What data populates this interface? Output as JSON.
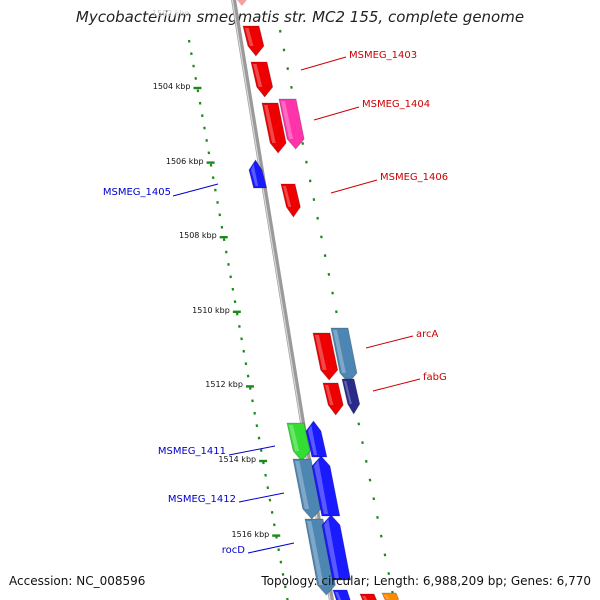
{
  "title": "Mycobacterium smegmatis str. MC2 155, complete genome",
  "footer": {
    "accession": "Accession: NC_008596",
    "summary": "Topology: circular; Length: 6,988,209 bp; Genes: 6,770"
  },
  "colors": {
    "backbone": "#888888",
    "ticks": "#1a8a1a",
    "forward_labels": "#cc0000",
    "reverse_labels": "#0000cc"
  },
  "ticks": [
    {
      "label": "1504 kbp",
      "kbp": 1504
    },
    {
      "label": "1506 kbp",
      "kbp": 1506
    },
    {
      "label": "1508 kbp",
      "kbp": 1508
    },
    {
      "label": "1510 kbp",
      "kbp": 1510
    },
    {
      "label": "1512 kbp",
      "kbp": 1512
    },
    {
      "label": "1514 kbp",
      "kbp": 1514
    },
    {
      "label": "1516 kbp",
      "kbp": 1516
    }
  ],
  "gene_labels": [
    {
      "text": "MSMEG_1403",
      "strand": "forward"
    },
    {
      "text": "MSMEG_1404",
      "strand": "forward"
    },
    {
      "text": "MSMEG_1406",
      "strand": "forward"
    },
    {
      "text": "arcA",
      "strand": "forward"
    },
    {
      "text": "fabG",
      "strand": "forward"
    },
    {
      "text": "MSMEG_1405",
      "strand": "reverse"
    },
    {
      "text": "MSMEG_1411",
      "strand": "reverse"
    },
    {
      "text": "MSMEG_1412",
      "strand": "reverse"
    },
    {
      "text": "rocD",
      "strand": "reverse"
    }
  ]
}
